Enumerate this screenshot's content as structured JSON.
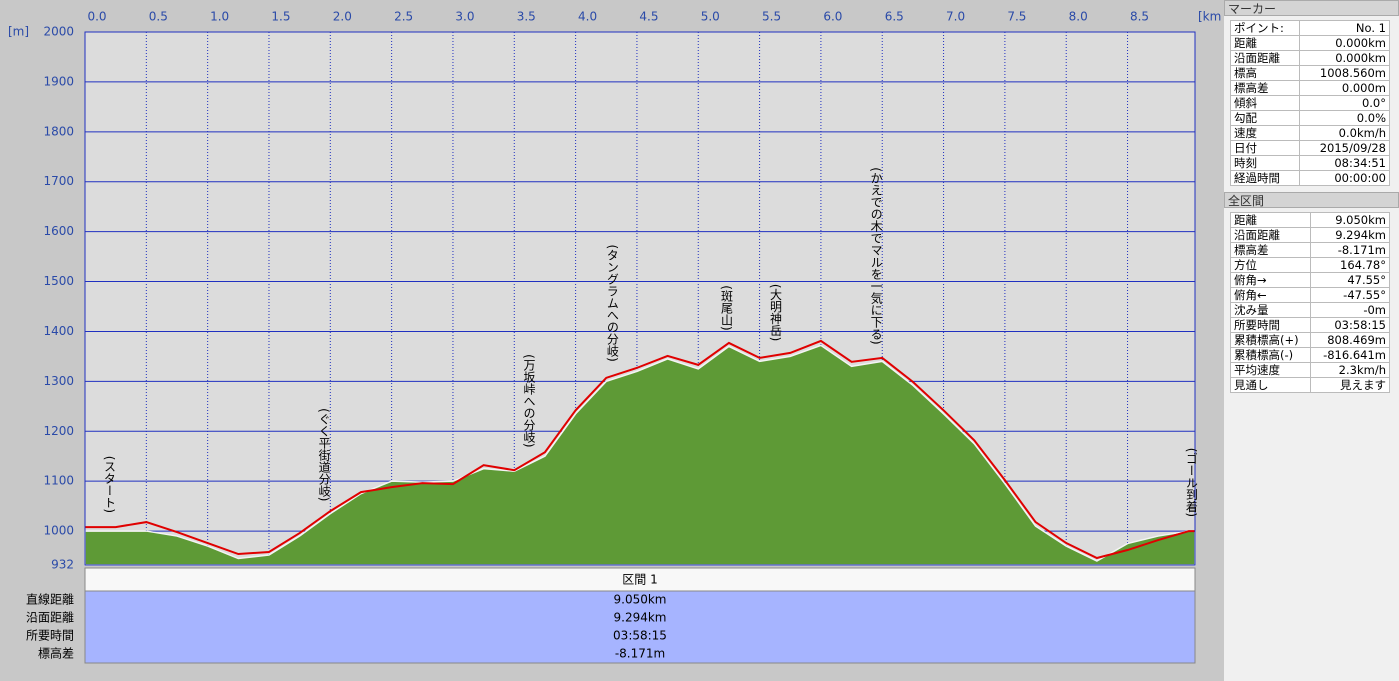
{
  "chart_data": {
    "type": "area",
    "x_unit": "[km]",
    "y_unit": "[m]",
    "x": [
      0,
      0.25,
      0.5,
      0.75,
      1.0,
      1.25,
      1.5,
      1.75,
      2.0,
      2.25,
      2.5,
      2.75,
      3.0,
      3.25,
      3.5,
      3.75,
      4.0,
      4.25,
      4.5,
      4.75,
      5.0,
      5.25,
      5.5,
      5.75,
      6.0,
      6.25,
      6.5,
      6.75,
      7.0,
      7.25,
      7.5,
      7.75,
      8.0,
      8.25,
      8.5,
      8.75,
      9.0,
      9.05
    ],
    "series": [
      {
        "type": "area",
        "color": "#5e9a36",
        "values": [
          1000,
          1000,
          1000,
          990,
          970,
          945,
          952,
          990,
          1035,
          1075,
          1100,
          1098,
          1100,
          1125,
          1120,
          1150,
          1235,
          1300,
          1320,
          1345,
          1325,
          1370,
          1340,
          1350,
          1372,
          1330,
          1340,
          1292,
          1235,
          1175,
          1095,
          1010,
          970,
          940,
          975,
          990,
          1000,
          1000
        ]
      },
      {
        "type": "line",
        "color": "#e00000",
        "values": [
          1008,
          1008,
          1018,
          998,
          976,
          954,
          958,
          996,
          1040,
          1078,
          1088,
          1096,
          1094,
          1132,
          1122,
          1158,
          1242,
          1307,
          1327,
          1351,
          1333,
          1377,
          1347,
          1357,
          1381,
          1339,
          1347,
          1299,
          1242,
          1182,
          1102,
          1018,
          976,
          946,
          962,
          982,
          1000,
          1000
        ]
      }
    ],
    "xlim": [
      0,
      9.05
    ],
    "ylim": [
      932,
      2000
    ],
    "xticks": [
      {
        "value": 0,
        "label": "0.0"
      },
      0.5,
      {
        "value": 1,
        "label": "1.0"
      },
      1.5,
      {
        "value": 2,
        "label": "2.0"
      },
      2.5,
      {
        "value": 3,
        "label": "3.0"
      },
      3.5,
      {
        "value": 4,
        "label": "4.0"
      },
      4.5,
      {
        "value": 5,
        "label": "5.0"
      },
      5.5,
      {
        "value": 6,
        "label": "6.0"
      },
      6.5,
      {
        "value": 7,
        "label": "7.0"
      },
      7.5,
      {
        "value": 8,
        "label": "8.0"
      },
      8.5
    ],
    "yticks": [
      932,
      1000,
      1100,
      1200,
      1300,
      1400,
      1500,
      1600,
      1700,
      1800,
      1900,
      2000
    ],
    "grid": true,
    "annotations": [
      {
        "text": "(スタート)",
        "x": 0.2
      },
      {
        "text": "(ぐく平街道分岐)",
        "x": 1.95
      },
      {
        "text": "(万坂峠への分岐)",
        "x": 3.62
      },
      {
        "text": "(タングラムへの分岐)",
        "x": 4.3
      },
      {
        "text": "(斑尾山)",
        "x": 5.23
      },
      {
        "text": "(大明神岳)",
        "x": 5.63
      },
      {
        "text": "(かえでの木でマルを一気に下る)",
        "x": 6.45
      },
      {
        "text": "(ゴール到着)",
        "x": 9.02
      }
    ]
  },
  "section_table": {
    "header": "区間 1",
    "rows": [
      [
        "直線距離",
        "9.050km"
      ],
      [
        "沿面距離",
        "9.294km"
      ],
      [
        "所要時間",
        "03:58:15"
      ],
      [
        "標高差",
        "-8.171m"
      ]
    ]
  },
  "marker_panel": {
    "title": "マーカー",
    "rows": [
      [
        "ポイント:",
        "No. 1"
      ],
      [
        "距離",
        "0.000km"
      ],
      [
        "沿面距離",
        "0.000km"
      ],
      [
        "標高",
        "1008.560m"
      ],
      [
        "標高差",
        "0.000m"
      ],
      [
        "傾斜",
        "0.0°"
      ],
      [
        "勾配",
        "0.0%"
      ],
      [
        "速度",
        "0.0km/h"
      ],
      [
        "日付",
        "2015/09/28"
      ],
      [
        "時刻",
        "08:34:51"
      ],
      [
        "経過時間",
        "00:00:00"
      ]
    ]
  },
  "total_panel": {
    "title": "全区間",
    "rows": [
      [
        "距離",
        "9.050km"
      ],
      [
        "沿面距離",
        "9.294km"
      ],
      [
        "標高差",
        "-8.171m"
      ],
      [
        "方位",
        "164.78°"
      ],
      [
        "俯角→",
        "47.55°"
      ],
      [
        "俯角←",
        "-47.55°"
      ],
      [
        "沈み量",
        "-0m"
      ],
      [
        "所要時間",
        "03:58:15"
      ],
      [
        "累積標高(+)",
        "808.469m"
      ],
      [
        "累積標高(-)",
        "-816.641m"
      ],
      [
        "平均速度",
        "2.3km/h"
      ],
      [
        "見通し",
        "見えます"
      ]
    ]
  }
}
